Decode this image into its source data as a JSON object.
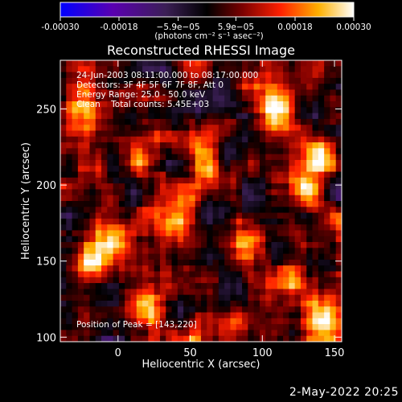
{
  "chart_data": {
    "type": "heatmap",
    "title": "Reconstructed RHESSI Image",
    "xlabel": "Heliocentric X (arcsec)",
    "ylabel": "Heliocentric Y (arcsec)",
    "xlim": [
      -40,
      155
    ],
    "ylim": [
      97,
      282
    ],
    "x_ticks": [
      0,
      50,
      100,
      150
    ],
    "y_ticks": [
      100,
      150,
      200,
      250
    ],
    "colorbar": {
      "min": -0.0003,
      "max": 0.0003,
      "tick_values": [
        -0.0003,
        -0.00018,
        -5.9e-05,
        5.9e-05,
        0.00018,
        0.0003
      ],
      "tick_labels": [
        "-0.00030",
        "-0.00018",
        "−5.9e−05",
        "5.9e−05",
        "0.00018",
        "0.00030"
      ],
      "unit_label": "(photons cm⁻² s⁻¹ asec⁻²)",
      "colors": [
        "#0000ff",
        "#5a00b0",
        "#3b1f55",
        "#000000",
        "#7a0000",
        "#ff2000",
        "#ffb000",
        "#ffffff"
      ]
    },
    "annotations": [
      "24-Jun-2003 08:11:00.000 to 08:17:00.000",
      "Detectors: 3F 4F 5F 6F 7F 8F, Att 0",
      "Energy Range: 25.0 - 50.0 keV",
      "Clean    Total counts: 5.45E+03"
    ],
    "peak_label": "Position of Peak = [143,220]",
    "peak": {
      "x": 143,
      "y": 220
    },
    "hotspots": [
      {
        "x": 143,
        "y": 220,
        "v": 1.0
      },
      {
        "x": 12,
        "y": 217,
        "v": 0.75
      },
      {
        "x": 92,
        "y": 163,
        "v": 0.8
      },
      {
        "x": 130,
        "y": 196,
        "v": 0.7
      },
      {
        "x": 40,
        "y": 178,
        "v": 0.65
      },
      {
        "x": -25,
        "y": 250,
        "v": 0.6
      },
      {
        "x": 110,
        "y": 250,
        "v": 0.55
      },
      {
        "x": 20,
        "y": 120,
        "v": 0.6
      },
      {
        "x": 75,
        "y": 105,
        "v": 0.6
      },
      {
        "x": 145,
        "y": 115,
        "v": 0.55
      },
      {
        "x": -20,
        "y": 150,
        "v": 0.6
      },
      {
        "x": 60,
        "y": 215,
        "v": 0.55
      },
      {
        "x": 120,
        "y": 140,
        "v": 0.5
      },
      {
        "x": 0,
        "y": 160,
        "v": 0.55
      }
    ],
    "grid": false
  },
  "footer": {
    "datestamp": "2-May-2022 20:25"
  }
}
